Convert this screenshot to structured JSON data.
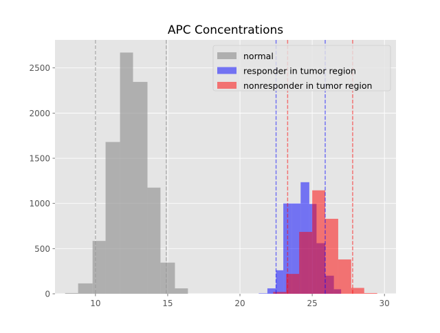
{
  "chart_data": {
    "type": "histogram",
    "title": "APC Concentrations",
    "xlabel": "",
    "ylabel": "",
    "xlim": [
      7.2,
      30.8
    ],
    "ylim": [
      0,
      2810
    ],
    "xticks": [
      10,
      15,
      20,
      25,
      30
    ],
    "yticks": [
      0,
      500,
      1000,
      1500,
      2000,
      2500
    ],
    "grid": true,
    "legend": {
      "position": "top-right"
    },
    "series": [
      {
        "name": "normal",
        "color": "#999999",
        "opacity": 0.7,
        "bins": [
          {
            "x0": 7.9,
            "x1": 8.8,
            "count": 8
          },
          {
            "x0": 8.8,
            "x1": 9.8,
            "count": 115
          },
          {
            "x0": 9.8,
            "x1": 10.7,
            "count": 585
          },
          {
            "x0": 10.7,
            "x1": 11.7,
            "count": 1680
          },
          {
            "x0": 11.7,
            "x1": 12.6,
            "count": 2670
          },
          {
            "x0": 12.6,
            "x1": 13.6,
            "count": 2345
          },
          {
            "x0": 13.6,
            "x1": 14.5,
            "count": 1175
          },
          {
            "x0": 14.5,
            "x1": 15.5,
            "count": 345
          },
          {
            "x0": 15.5,
            "x1": 16.4,
            "count": 60
          }
        ],
        "vlines": [
          10.0,
          14.9
        ]
      },
      {
        "name": "responder in tumor region",
        "color": "#0000ff",
        "opacity": 0.5,
        "bins": [
          {
            "x0": 21.3,
            "x1": 21.9,
            "count": 5
          },
          {
            "x0": 21.9,
            "x1": 22.5,
            "count": 60
          },
          {
            "x0": 22.5,
            "x1": 23.0,
            "count": 260
          },
          {
            "x0": 23.0,
            "x1": 23.6,
            "count": 1000
          },
          {
            "x0": 23.6,
            "x1": 24.2,
            "count": 1000
          },
          {
            "x0": 24.2,
            "x1": 24.8,
            "count": 1235
          },
          {
            "x0": 24.8,
            "x1": 25.3,
            "count": 995
          },
          {
            "x0": 25.3,
            "x1": 25.9,
            "count": 560
          },
          {
            "x0": 25.9,
            "x1": 26.5,
            "count": 200
          },
          {
            "x0": 26.5,
            "x1": 27.0,
            "count": 50
          }
        ],
        "vlines": [
          22.5,
          25.9
        ]
      },
      {
        "name": "nonresponder in tumor region",
        "color": "#ff0000",
        "opacity": 0.5,
        "bins": [
          {
            "x0": 22.3,
            "x1": 23.2,
            "count": 20
          },
          {
            "x0": 23.2,
            "x1": 24.1,
            "count": 220
          },
          {
            "x0": 24.1,
            "x1": 25.0,
            "count": 685
          },
          {
            "x0": 25.0,
            "x1": 25.9,
            "count": 1145
          },
          {
            "x0": 25.9,
            "x1": 26.8,
            "count": 830
          },
          {
            "x0": 26.8,
            "x1": 27.7,
            "count": 380
          },
          {
            "x0": 27.7,
            "x1": 28.6,
            "count": 65
          },
          {
            "x0": 28.6,
            "x1": 29.5,
            "count": 8
          }
        ],
        "vlines": [
          23.3,
          27.8
        ]
      }
    ]
  }
}
